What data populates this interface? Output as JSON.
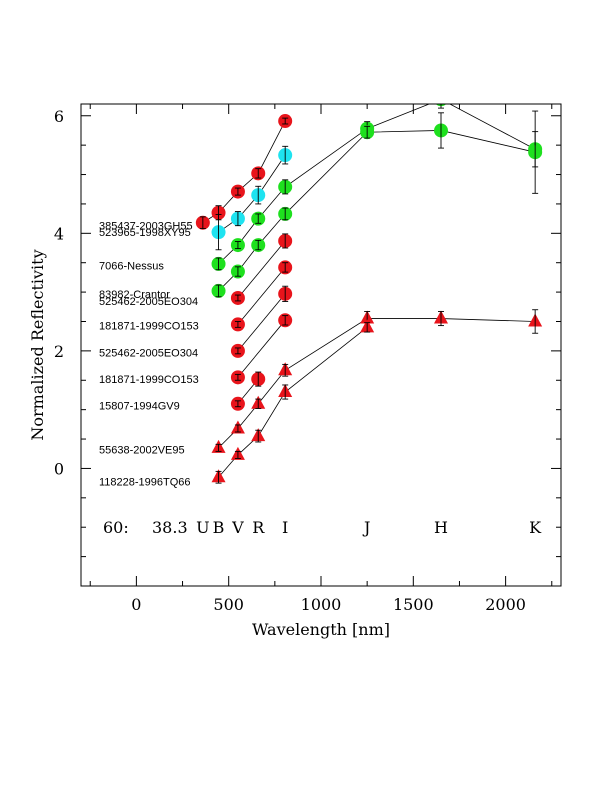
{
  "chart_data": {
    "type": "scatter",
    "xlabel": "Wavelength [nm]",
    "ylabel": "Normalized Reflectivity",
    "xlim": [
      -300,
      2300
    ],
    "ylim": [
      -2,
      6.2
    ],
    "x_ticks": [
      0,
      500,
      1000,
      1500,
      2000
    ],
    "y_ticks": [
      0,
      2,
      4,
      6
    ],
    "colors": {
      "red": "#e8141b",
      "green": "#1ee01e",
      "cyan": "#1ee3f0"
    },
    "annotation_left": "60:",
    "annotation_right": "38.3",
    "band_labels": [
      {
        "label": "U",
        "x": 360
      },
      {
        "label": "B",
        "x": 445
      },
      {
        "label": "V",
        "x": 550
      },
      {
        "label": "R",
        "x": 660
      },
      {
        "label": "I",
        "x": 806
      },
      {
        "label": "J",
        "x": 1250
      },
      {
        "label": "H",
        "x": 1650
      },
      {
        "label": "K",
        "x": 2160
      }
    ],
    "object_labels": [
      {
        "text": "385437-2003GH55",
        "y": 4.13
      },
      {
        "text": "523965-1998XY95",
        "y": 4.02
      },
      {
        "text": "7066-Nessus",
        "y": 3.45
      },
      {
        "text": "83982-Crantor",
        "y": 2.97
      },
      {
        "text": "525462-2005EO304",
        "y": 2.85
      },
      {
        "text": "181871-1999CO153",
        "y": 2.43
      },
      {
        "text": "525462-2005EO304",
        "y": 1.97
      },
      {
        "text": "181871-1999CO153",
        "y": 1.52
      },
      {
        "text": "15807-1994GV9",
        "y": 1.07
      },
      {
        "text": "55638-2002VE95",
        "y": 0.32
      },
      {
        "text": "118228-1996TQ66",
        "y": -0.22
      }
    ],
    "series": [
      {
        "color": "red",
        "marker": "circle",
        "points": [
          {
            "x": 360,
            "y": 4.18,
            "err": 0.1
          },
          {
            "x": 445,
            "y": 4.35,
            "err": 0.12
          },
          {
            "x": 550,
            "y": 4.71,
            "err": 0.06
          },
          {
            "x": 660,
            "y": 5.02,
            "err": 0.08
          },
          {
            "x": 806,
            "y": 5.91,
            "err": 0.05
          }
        ]
      },
      {
        "color": "cyan",
        "marker": "circle",
        "points": [
          {
            "x": 445,
            "y": 4.02,
            "err": 0.3
          },
          {
            "x": 550,
            "y": 4.25,
            "err": 0.12
          },
          {
            "x": 660,
            "y": 4.65,
            "err": 0.15
          },
          {
            "x": 806,
            "y": 5.33,
            "err": 0.15
          }
        ]
      },
      {
        "color": "green",
        "marker": "circle",
        "points": [
          {
            "x": 445,
            "y": 3.48,
            "err": 0.1
          },
          {
            "x": 550,
            "y": 3.8,
            "err": 0.06
          },
          {
            "x": 660,
            "y": 4.25,
            "err": 0.08
          },
          {
            "x": 806,
            "y": 4.79,
            "err": 0.12
          },
          {
            "x": 1250,
            "y": 5.78,
            "err": 0.12
          },
          {
            "x": 1650,
            "y": 6.28,
            "err": 0.15
          },
          {
            "x": 2160,
            "y": 5.43,
            "err": 0.3
          }
        ]
      },
      {
        "color": "green",
        "marker": "circle",
        "points": [
          {
            "x": 445,
            "y": 3.02,
            "err": 0.1
          },
          {
            "x": 550,
            "y": 3.35,
            "err": 0.08
          },
          {
            "x": 660,
            "y": 3.8,
            "err": 0.08
          },
          {
            "x": 806,
            "y": 4.33,
            "err": 0.1
          },
          {
            "x": 1250,
            "y": 5.72,
            "err": 0.1
          },
          {
            "x": 1650,
            "y": 5.75,
            "err": 0.3
          },
          {
            "x": 2160,
            "y": 5.38,
            "err": 0.7
          }
        ]
      },
      {
        "color": "red",
        "marker": "circle",
        "points": [
          {
            "x": 550,
            "y": 2.9,
            "err": 0.05
          },
          {
            "x": 806,
            "y": 3.87,
            "err": 0.12
          }
        ]
      },
      {
        "color": "red",
        "marker": "circle",
        "points": [
          {
            "x": 550,
            "y": 2.45,
            "err": 0.05
          },
          {
            "x": 806,
            "y": 3.42,
            "err": 0.08
          }
        ]
      },
      {
        "color": "red",
        "marker": "circle",
        "points": [
          {
            "x": 550,
            "y": 2.0,
            "err": 0.05
          },
          {
            "x": 806,
            "y": 2.97,
            "err": 0.13
          }
        ]
      },
      {
        "color": "red",
        "marker": "circle",
        "points": [
          {
            "x": 550,
            "y": 1.55,
            "err": 0.05
          },
          {
            "x": 806,
            "y": 2.52,
            "err": 0.08
          }
        ]
      },
      {
        "color": "red",
        "marker": "circle",
        "points": [
          {
            "x": 550,
            "y": 1.1,
            "err": 0.05
          },
          {
            "x": 660,
            "y": 1.52,
            "err": 0.12
          }
        ]
      },
      {
        "color": "red",
        "marker": "triangle",
        "points": [
          {
            "x": 445,
            "y": 0.35,
            "err": 0.06
          },
          {
            "x": 550,
            "y": 0.68,
            "err": 0.06
          },
          {
            "x": 660,
            "y": 1.1,
            "err": 0.08
          },
          {
            "x": 806,
            "y": 1.67,
            "err": 0.1
          },
          {
            "x": 1250,
            "y": 2.55,
            "err": 0.12
          },
          {
            "x": 1650,
            "y": 2.55,
            "err": 0.12
          },
          {
            "x": 2160,
            "y": 2.5,
            "err": 0.2
          }
        ]
      },
      {
        "color": "red",
        "marker": "triangle",
        "points": [
          {
            "x": 445,
            "y": -0.15,
            "err": 0.1
          },
          {
            "x": 550,
            "y": 0.23,
            "err": 0.06
          },
          {
            "x": 660,
            "y": 0.55,
            "err": 0.1
          },
          {
            "x": 806,
            "y": 1.3,
            "err": 0.12
          },
          {
            "x": 1250,
            "y": 2.4,
            "err": 0.08
          }
        ]
      }
    ]
  }
}
